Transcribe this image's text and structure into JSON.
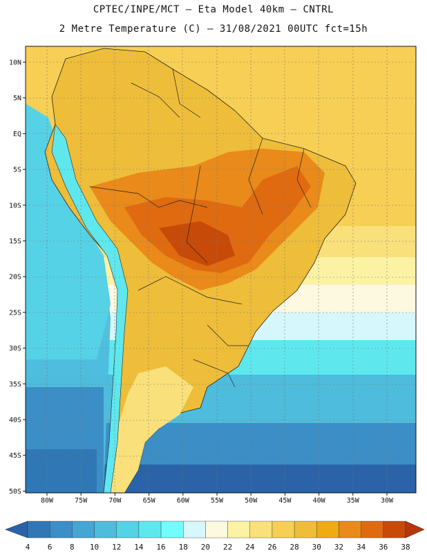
{
  "title_line1": "CPTEC/INPE/MCT –  Eta Model 40km – CNTRL",
  "title_line2": "2 Metre Temperature (C) – 31/08/2021 00UTC fct=15h",
  "lat_labels": [
    "10N",
    "5N",
    "EQ",
    "5S",
    "10S",
    "15S",
    "20S",
    "25S",
    "30S",
    "35S",
    "40S",
    "45S",
    "50S"
  ],
  "lon_labels": [
    "80W",
    "75W",
    "70W",
    "65W",
    "60W",
    "55W",
    "50W",
    "45W",
    "40W",
    "35W",
    "30W"
  ],
  "colorbar": {
    "labels": [
      "4",
      "6",
      "8",
      "10",
      "12",
      "14",
      "16",
      "18",
      "20",
      "22",
      "24",
      "26",
      "28",
      "30",
      "32",
      "34",
      "36",
      "38"
    ],
    "colors": [
      "#2a63a8",
      "#2f78b5",
      "#3b8ec6",
      "#45a6d3",
      "#4ebcdc",
      "#55d2e6",
      "#5ee8ee",
      "#74fbfb",
      "#d6f7fb",
      "#fdf8e0",
      "#fcf2a4",
      "#f9e07a",
      "#f6cf54",
      "#eebd3a",
      "#f0aa12",
      "#e98a1a",
      "#e06a10",
      "#c84a08",
      "#b8360b"
    ]
  },
  "map_colors": {
    "ocean_south_deep": "#2a63a8",
    "ocean_south": "#3b8ec6",
    "ocean_mid": "#4ebcdc",
    "ocean_cyan": "#5ee8ee",
    "ocean_pale": "#d6f7fb",
    "ocean_cream": "#fdf8e0",
    "ocean_tropical": "#f6cf54",
    "land_warm": "#eebd3a",
    "land_hot": "#e98a1a",
    "land_hottest": "#c84a08",
    "andes": "#5ee8ee"
  }
}
